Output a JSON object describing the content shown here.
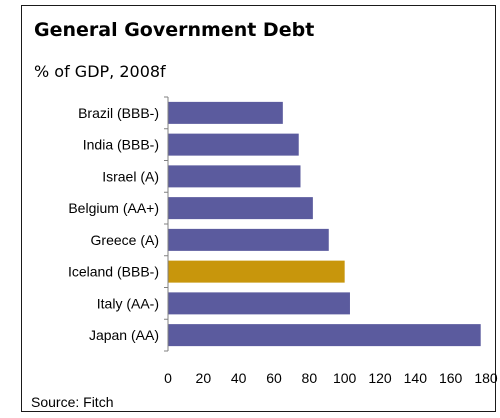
{
  "title": "General Government Debt",
  "subtitle": "% of GDP, 2008f",
  "source": "Source: Fitch",
  "colors": {
    "bar": "#5b5b9e",
    "highlight": "#c8960c",
    "axis": "#808080"
  },
  "chart_data": {
    "type": "bar",
    "orientation": "horizontal",
    "title": "General Government Debt",
    "subtitle": "% of GDP, 2008f",
    "categories": [
      "Brazil (BBB-)",
      "India (BBB-)",
      "Israel (A)",
      "Belgium (AA+)",
      "Greece (A)",
      "Iceland (BBB-)",
      "Italy (AA-)",
      "Japan (AA)"
    ],
    "values": [
      65,
      74,
      75,
      82,
      91,
      100,
      103,
      177
    ],
    "highlight_category": "Iceland (BBB-)",
    "xlim": [
      0,
      180
    ],
    "xticks": [
      0,
      20,
      40,
      60,
      80,
      100,
      120,
      140,
      160,
      180
    ],
    "xlabel": "",
    "ylabel": "",
    "grid": false,
    "legend": "none"
  }
}
